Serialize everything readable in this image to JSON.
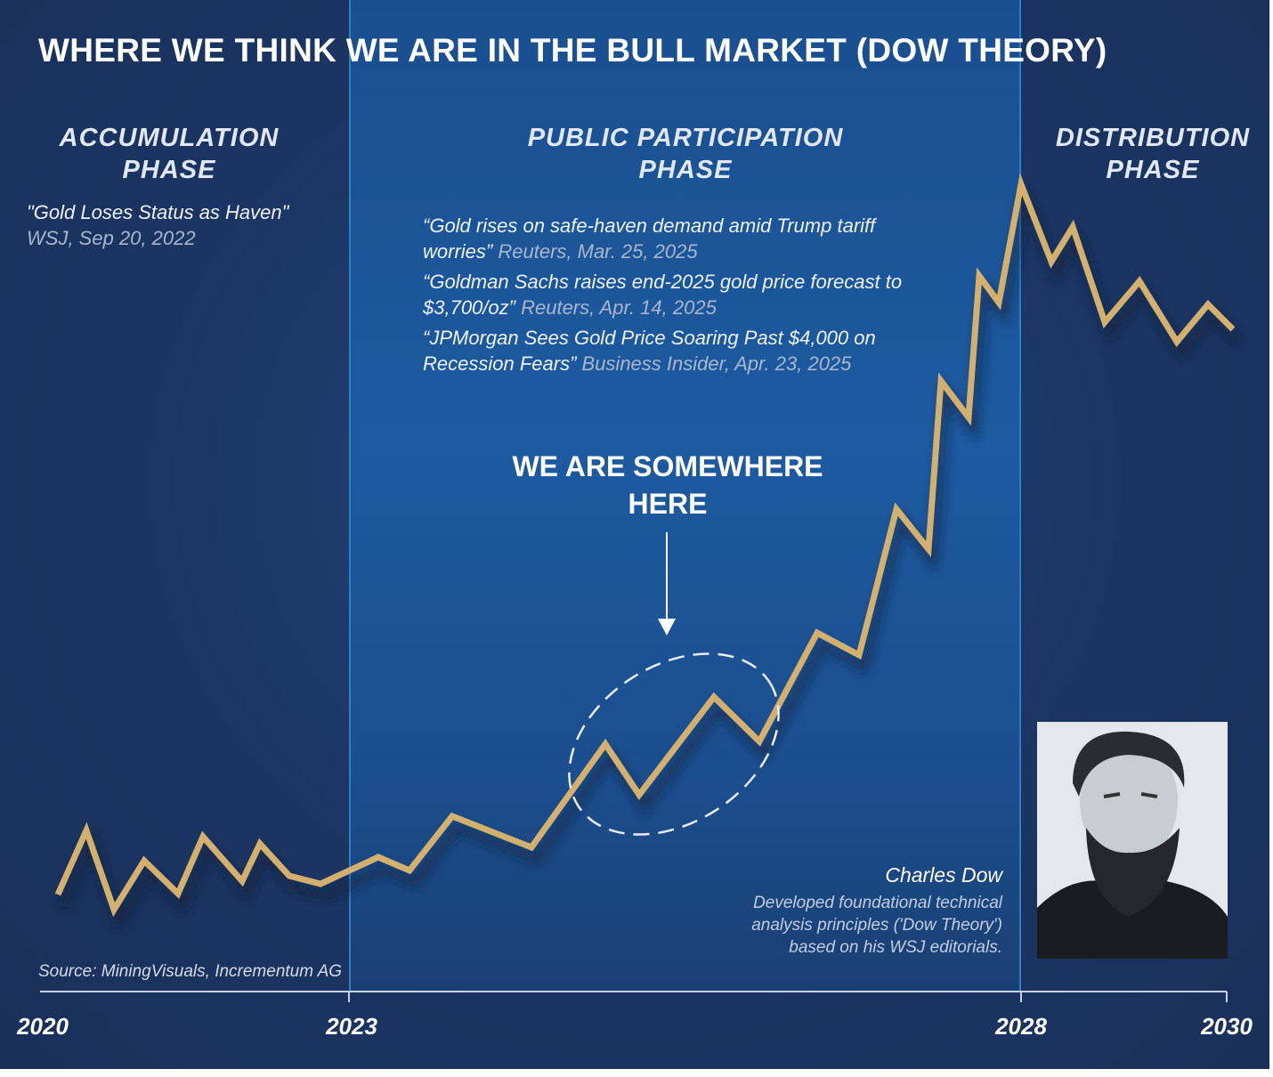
{
  "title": "WHERE WE THINK WE ARE IN THE BULL MARKET (DOW THEORY)",
  "phases": [
    "ACCUMULATION PHASE",
    "PUBLIC PARTICIPATION PHASE",
    "DISTRIBUTION PHASE"
  ],
  "accumulation_quote": {
    "text": "\"Gold Loses Status as Haven\"",
    "source": "WSJ, Sep 20, 2022"
  },
  "quotes": [
    {
      "text": "“Gold rises on safe-haven demand amid Trump tariff worries”",
      "source": "Reuters, Mar. 25, 2025"
    },
    {
      "text": "“Goldman Sachs raises end-2025 gold price forecast to $3,700/oz”",
      "source": "Reuters, Apr. 14, 2025"
    },
    {
      "text": "“JPMorgan Sees Gold Price Soaring Past $4,000 on Recession Fears”",
      "source": "Business Insider, Apr. 23, 2025"
    }
  ],
  "callout": "WE ARE SOMEWHERE HERE",
  "portrait": {
    "name": "Charles Dow",
    "description": "Developed foundational technical analysis principles ('Dow Theory') based on his WSJ editorials."
  },
  "source": "Source: MiningVisuals, Incrementum AG",
  "x_axis_labels": [
    "2020",
    "2023",
    "2028",
    "2030"
  ]
}
